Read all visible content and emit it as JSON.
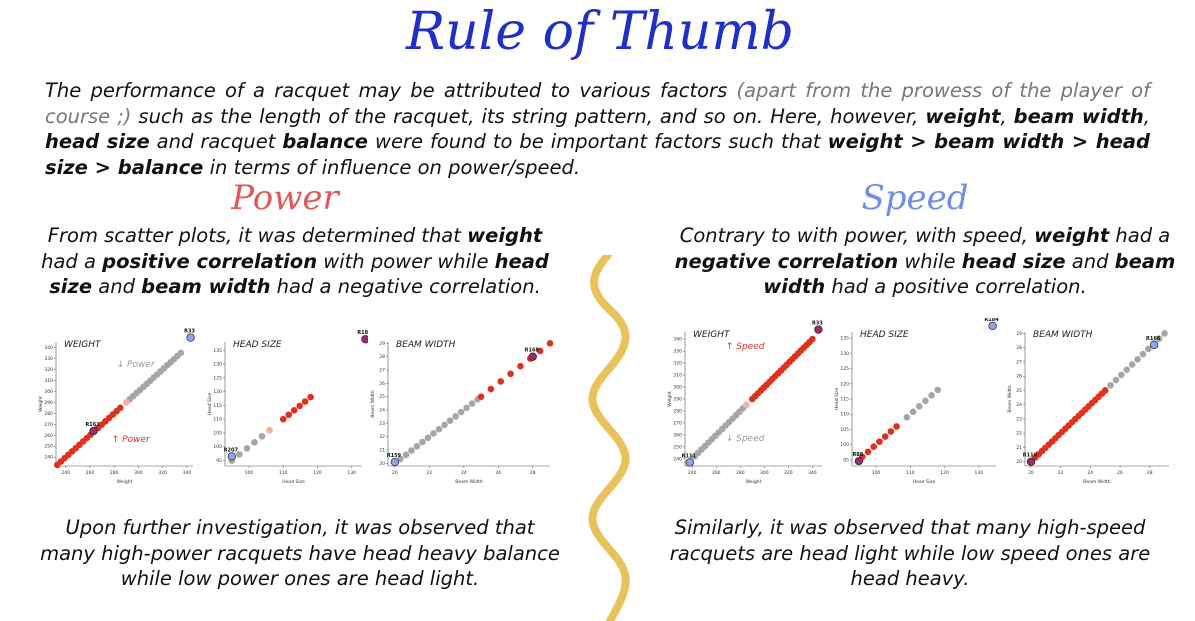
{
  "title": "Rule of Thumb",
  "intro": {
    "t1": "The performance of a racquet may be attributed to various factors ",
    "t2": "(apart from the prowess of the player of course ;)",
    "t3": " such as the length of the racquet, its string pattern, and so on. Here, however, ",
    "b1": "weight",
    "t4": ", ",
    "b2": "beam width",
    "t5": ", ",
    "b3": "head size",
    "t6": " and racquet ",
    "b4": "balance",
    "t7": " were found to be important factors such that ",
    "b5": "weight > beam width > head size > balance",
    "t8": " in terms of influence on power/speed."
  },
  "power": {
    "heading": "Power",
    "desc": {
      "t1": "From scatter plots, it was determined that ",
      "b1": "weight",
      "t2": " had a ",
      "b2": "positive correlation",
      "t3": " with power while ",
      "b3": "head size",
      "t4": " and ",
      "b4": "beam width",
      "t5": " had a negative correlation."
    },
    "note": "Upon further investigation, it was observed that many high-power racquets have head heavy balance while low power ones are head light."
  },
  "speed": {
    "heading": "Speed",
    "desc": {
      "t1": "Contrary to with power, with speed, ",
      "b1": "weight",
      "t2": " had a ",
      "b2": "negative correlation",
      "t3": " while ",
      "b3": "head size",
      "t4": " and ",
      "b4": "beam width",
      "t5": " had a positive correlation."
    },
    "note": "Similarly, it was observed that many high-speed racquets are head light while low speed ones are head heavy."
  },
  "colors": {
    "title": "#1f2fc7",
    "power": "#e25858",
    "speed": "#6f8fe6",
    "gray": "#a6a6a6",
    "red": "#e0311f",
    "peach": "#f4b49a",
    "wave": "#e8c35c",
    "highlight_purple": "#9b2a6e",
    "highlight_blue": "#8fa3ee"
  },
  "chart_data": [
    {
      "id": "power-weight",
      "type": "scatter",
      "title": "WEIGHT",
      "xlabel": "Weight",
      "ylabel": "Weight",
      "xlim": [
        232,
        345
      ],
      "ylim": [
        232,
        345
      ],
      "xticks": [
        240,
        260,
        280,
        300,
        320,
        340
      ],
      "yticks": [
        240,
        250,
        260,
        270,
        280,
        290,
        300,
        310,
        320,
        330,
        340
      ],
      "red": {
        "from": 233,
        "to": 285,
        "n": 18
      },
      "peach": {
        "from": 285,
        "to": 290,
        "n": 2
      },
      "gray": {
        "from": 290,
        "to": 335,
        "n": 17
      },
      "highlights": [
        {
          "label": "R33",
          "x": 343,
          "y": 349,
          "fill": "#8fa3ee"
        },
        {
          "label": "R161",
          "x": 263,
          "y": 264,
          "fill": "#9b2a6e"
        }
      ],
      "annotations": [
        {
          "text": "↓ Power",
          "x": 282,
          "y": 322,
          "color": "#9a9a9a"
        },
        {
          "text": "↑ Power",
          "x": 278,
          "y": 254,
          "color": "#e0311f"
        }
      ]
    },
    {
      "id": "power-headsize",
      "type": "scatter",
      "title": "HEAD SIZE",
      "xlabel": "Head Size",
      "ylabel": "Head Size",
      "xlim": [
        93,
        133
      ],
      "ylim": [
        93,
        138
      ],
      "xticks": [
        100,
        110,
        120,
        130
      ],
      "yticks": [
        95,
        100,
        105,
        110,
        115,
        120,
        125,
        130,
        135
      ],
      "gray": {
        "from": 95,
        "to": 106,
        "n": 6
      },
      "peach": {
        "from": 106,
        "to": 110,
        "n": 2
      },
      "red": {
        "from": 110,
        "to": 118,
        "n": 6
      },
      "highlights": [
        {
          "label": "R207",
          "x": 95,
          "y": 96.5,
          "fill": "#8fa3ee"
        },
        {
          "label": "R184",
          "x": 134,
          "y": 139,
          "fill": "#9b2a6e"
        }
      ],
      "annotations": []
    },
    {
      "id": "power-beamwidth",
      "type": "scatter",
      "title": "BEAM WIDTH",
      "xlabel": "Beam Width",
      "ylabel": "Beam Width",
      "xlim": [
        19.6,
        29
      ],
      "ylim": [
        19.8,
        29.1
      ],
      "xticks": [
        20,
        22,
        24,
        26,
        28
      ],
      "yticks": [
        20,
        21,
        22,
        23,
        24,
        25,
        26,
        27,
        28,
        29
      ],
      "gray": {
        "from": 20,
        "to": 24.8,
        "n": 16
      },
      "red": {
        "from": 25,
        "to": 29,
        "n": 8
      },
      "highlights": [
        {
          "label": "R159",
          "x": 20,
          "y": 20.1,
          "fill": "#8fa3ee"
        },
        {
          "label": "R168",
          "x": 28,
          "y": 28,
          "fill": "#9b2a6e"
        }
      ],
      "annotations": []
    },
    {
      "id": "speed-weight",
      "type": "scatter",
      "title": "WEIGHT",
      "xlabel": "Weight",
      "ylabel": "Weight",
      "xlim": [
        234,
        348
      ],
      "ylim": [
        234,
        346
      ],
      "xticks": [
        240,
        260,
        280,
        300,
        320,
        340
      ],
      "yticks": [
        240,
        250,
        260,
        270,
        280,
        290,
        300,
        310,
        320,
        330,
        340
      ],
      "gray": {
        "from": 242,
        "to": 285,
        "n": 16
      },
      "peach": {
        "from": 285,
        "to": 290,
        "n": 2
      },
      "red": {
        "from": 290,
        "to": 340,
        "n": 22
      },
      "highlights": [
        {
          "label": "R33",
          "x": 345,
          "y": 348,
          "fill": "#9b2a6e"
        },
        {
          "label": "R111",
          "x": 238,
          "y": 237,
          "fill": "#8fa3ee"
        }
      ],
      "annotations": [
        {
          "text": "↑ Speed",
          "x": 268,
          "y": 332,
          "color": "#e0311f"
        },
        {
          "text": "↓ Speed",
          "x": 268,
          "y": 255,
          "color": "#9a9a9a"
        }
      ]
    },
    {
      "id": "speed-headsize",
      "type": "scatter",
      "title": "HEAD SIZE",
      "xlabel": "Head Size",
      "ylabel": "Head Size",
      "xlim": [
        93,
        135
      ],
      "ylim": [
        93,
        137
      ],
      "xticks": [
        100,
        110,
        120,
        130
      ],
      "yticks": [
        95,
        100,
        105,
        110,
        115,
        120,
        125,
        130,
        135
      ],
      "red": {
        "from": 96,
        "to": 106,
        "n": 7
      },
      "peach": {
        "from": 106,
        "to": 109,
        "n": 1
      },
      "gray": {
        "from": 109,
        "to": 118,
        "n": 6
      },
      "highlights": [
        {
          "label": "R88",
          "x": 95,
          "y": 94.6,
          "fill": "#9b2a6e"
        },
        {
          "label": "R184",
          "x": 134,
          "y": 139,
          "fill": "#8fa3ee"
        }
      ],
      "annotations": []
    },
    {
      "id": "speed-beamwidth",
      "type": "scatter",
      "title": "BEAM WIDTH",
      "xlabel": "Beam Width",
      "ylabel": "Beam Width",
      "xlim": [
        19.6,
        29.3
      ],
      "ylim": [
        19.7,
        29.1
      ],
      "xticks": [
        20,
        22,
        24,
        26,
        28
      ],
      "yticks": [
        20,
        21,
        22,
        23,
        24,
        25,
        26,
        27,
        28,
        29
      ],
      "red": {
        "from": 20.3,
        "to": 25,
        "n": 22
      },
      "gray": {
        "from": 25,
        "to": 29,
        "n": 12
      },
      "highlights": [
        {
          "label": "R119",
          "x": 20,
          "y": 20,
          "fill": "#9b2a6e"
        },
        {
          "label": "R168",
          "x": 28.3,
          "y": 28.2,
          "fill": "#8fa3ee"
        }
      ],
      "annotations": []
    }
  ]
}
